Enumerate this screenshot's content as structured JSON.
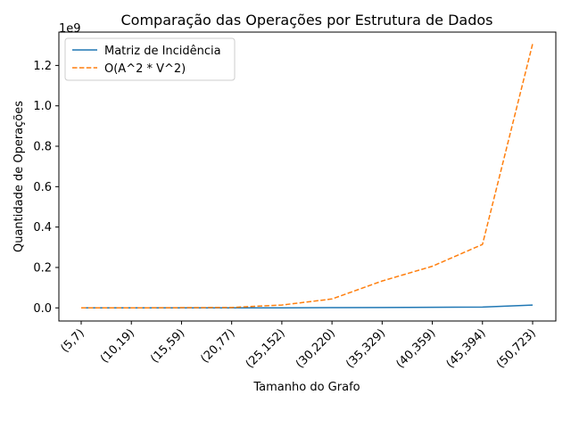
{
  "chart_data": {
    "type": "line",
    "title": "Comparação das Operações por Estrutura de Dados",
    "xlabel": "Tamanho do Grafo",
    "ylabel": "Quantidade de Operações",
    "y_offset_label": "1e9",
    "categories": [
      "(5,7)",
      "(10,19)",
      "(15,59)",
      "(20,77)",
      "(25,152)",
      "(30,220)",
      "(35,329)",
      "(40,359)",
      "(45,394)",
      "(50,723)"
    ],
    "y_ticks": [
      0.0,
      0.2,
      0.4,
      0.6,
      0.8,
      1.0,
      1.2
    ],
    "y_tick_labels": [
      "0.0",
      "0.2",
      "0.4",
      "0.6",
      "0.8",
      "1.0",
      "1.2"
    ],
    "ylim": [
      -0.065,
      1.365
    ],
    "y_scale_note": "values in units of 1e9",
    "grid": false,
    "legend_position": "upper-left",
    "series": [
      {
        "name": "Matriz de Incidência",
        "color": "#1f77b4",
        "style": "solid",
        "values": [
          0.0,
          0.0,
          0.0,
          0.0,
          0.0,
          0.001,
          0.002,
          0.003,
          0.004,
          0.014
        ]
      },
      {
        "name": "O(A^2 * V^2)",
        "color": "#ff7f0e",
        "style": "dashed",
        "values": [
          0.0,
          0.0,
          0.001,
          0.002,
          0.014,
          0.044,
          0.133,
          0.206,
          0.314,
          1.307
        ]
      }
    ]
  }
}
